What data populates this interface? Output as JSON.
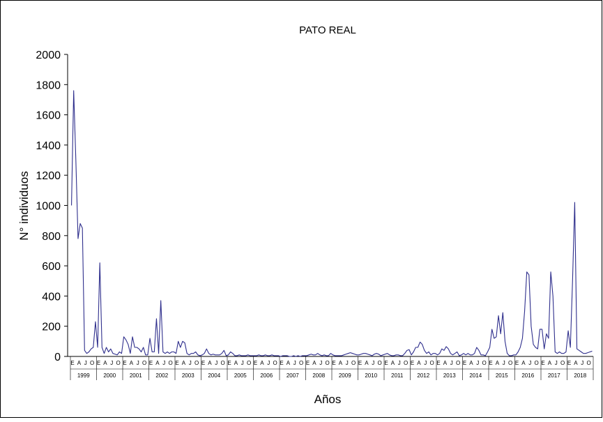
{
  "chart_data": {
    "type": "line",
    "title": "PATO REAL",
    "y_label": "N° individuos",
    "x_label": "Años",
    "color": "#2e2e8c",
    "ylim": [
      0,
      2000
    ],
    "yticks": [
      0,
      200,
      400,
      600,
      800,
      1000,
      1200,
      1400,
      1600,
      1800,
      2000
    ],
    "years": [
      "1999",
      "2000",
      "2001",
      "2002",
      "2003",
      "2004",
      "2005",
      "2006",
      "2007",
      "2008",
      "2009",
      "2010",
      "2011",
      "2012",
      "2013",
      "2014",
      "2015",
      "2016",
      "2017",
      "2018"
    ],
    "categories": [
      "E",
      null,
      null,
      "A",
      null,
      null,
      "J",
      null,
      null,
      "O",
      null,
      null,
      "E",
      null,
      null,
      "A",
      null,
      null,
      "J",
      null,
      null,
      "O",
      null,
      null,
      "E",
      null,
      null,
      "A",
      null,
      null,
      "J",
      null,
      null,
      "O",
      null,
      null,
      "E",
      null,
      null,
      "A",
      null,
      null,
      "J",
      null,
      null,
      "O",
      null,
      null,
      "E",
      null,
      null,
      "A",
      null,
      null,
      "J",
      null,
      null,
      "O",
      null,
      null,
      "E",
      null,
      null,
      "A",
      null,
      null,
      "J",
      null,
      null,
      "O",
      null,
      null,
      "E",
      null,
      null,
      "A",
      null,
      null,
      "J",
      null,
      null,
      "O",
      null,
      null,
      "E",
      null,
      null,
      "A",
      null,
      null,
      "J",
      null,
      null,
      "O",
      null,
      null,
      "E",
      null,
      null,
      "A",
      null,
      null,
      "J",
      null,
      null,
      "O",
      null,
      null,
      "E",
      null,
      null,
      "A",
      null,
      null,
      "J",
      null,
      null,
      "O",
      null,
      null,
      "E",
      null,
      null,
      "A",
      null,
      null,
      "J",
      null,
      null,
      "O",
      null,
      null,
      "E",
      null,
      null,
      "A",
      null,
      null,
      "J",
      null,
      null,
      "O",
      null,
      null,
      "E",
      null,
      null,
      "A",
      null,
      null,
      "J",
      null,
      null,
      "O",
      null,
      null,
      "E",
      null,
      null,
      "A",
      null,
      null,
      "J",
      null,
      null,
      "O",
      null,
      null,
      "E",
      null,
      null,
      "A",
      null,
      null,
      "J",
      null,
      null,
      "O",
      null,
      null,
      "E",
      null,
      null,
      "A",
      null,
      null,
      "J",
      null,
      null,
      "O",
      null,
      null,
      "E",
      null,
      null,
      "A",
      null,
      null,
      "J",
      null,
      null,
      "O",
      null,
      null,
      "E",
      null,
      null,
      "A",
      null,
      null,
      "J",
      null,
      null,
      "O",
      null,
      null,
      "E",
      null,
      null,
      "A",
      null,
      null,
      "J",
      null,
      null,
      "O",
      null,
      null,
      "E",
      null,
      null,
      "A",
      null,
      null,
      "J",
      null,
      null,
      "O",
      null,
      null
    ],
    "values": [
      1000,
      1760,
      1300,
      780,
      880,
      850,
      40,
      20,
      30,
      50,
      60,
      230,
      60,
      620,
      60,
      20,
      60,
      30,
      50,
      20,
      15,
      10,
      30,
      20,
      130,
      110,
      80,
      20,
      130,
      60,
      60,
      50,
      30,
      60,
      10,
      10,
      120,
      30,
      30,
      250,
      20,
      370,
      30,
      20,
      30,
      20,
      30,
      30,
      20,
      100,
      60,
      100,
      90,
      20,
      10,
      20,
      20,
      30,
      10,
      5,
      10,
      20,
      50,
      20,
      10,
      15,
      10,
      10,
      10,
      20,
      40,
      5,
      10,
      30,
      20,
      5,
      5,
      10,
      5,
      5,
      5,
      10,
      5,
      5,
      5,
      5,
      10,
      5,
      5,
      10,
      5,
      5,
      10,
      5,
      5,
      5,
      0,
      5,
      5,
      5,
      0,
      0,
      5,
      0,
      5,
      0,
      5,
      5,
      5,
      10,
      15,
      10,
      10,
      20,
      10,
      5,
      10,
      5,
      5,
      20,
      10,
      5,
      5,
      5,
      5,
      10,
      15,
      20,
      25,
      20,
      15,
      10,
      10,
      15,
      20,
      20,
      15,
      10,
      5,
      15,
      20,
      15,
      5,
      10,
      15,
      20,
      10,
      5,
      5,
      10,
      10,
      5,
      5,
      20,
      40,
      45,
      10,
      30,
      60,
      60,
      95,
      80,
      40,
      20,
      30,
      10,
      20,
      20,
      10,
      20,
      50,
      40,
      65,
      50,
      20,
      10,
      20,
      30,
      5,
      10,
      20,
      10,
      20,
      10,
      10,
      20,
      60,
      40,
      10,
      10,
      5,
      30,
      60,
      180,
      120,
      130,
      270,
      150,
      290,
      100,
      20,
      5,
      5,
      10,
      10,
      30,
      60,
      120,
      300,
      560,
      540,
      200,
      80,
      60,
      50,
      180,
      180,
      50,
      150,
      120,
      560,
      400,
      30,
      20,
      30,
      20,
      20,
      30,
      170,
      60,
      500,
      1020,
      50,
      40,
      30,
      20,
      20,
      25,
      30,
      35
    ]
  }
}
